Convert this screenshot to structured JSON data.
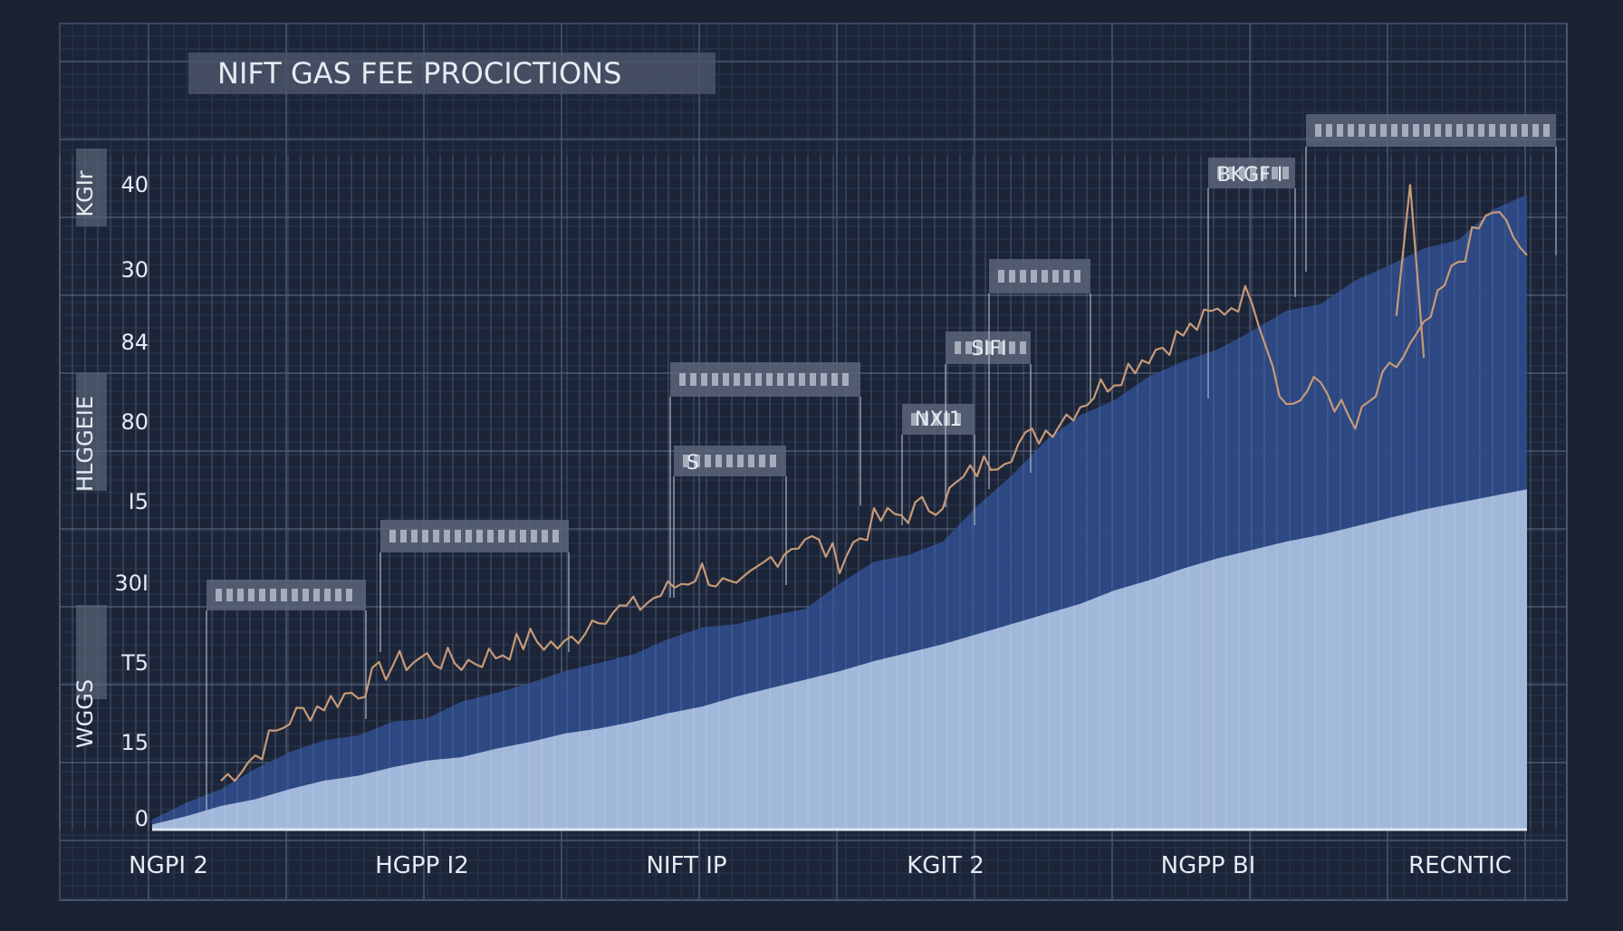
{
  "colors": {
    "background": "#1a2233",
    "panel": "#1c2538",
    "grid_minor": "#2a3650",
    "grid_major": "#4a5670",
    "area_outer": "#2e4a86",
    "area_inner": "#a9bfdf",
    "line": "#c79a78",
    "label_box": "#5a6478",
    "text": "#e6ebf3"
  },
  "chart_data": {
    "type": "area",
    "title": "NIFT  GAS FEE PROCICTIONS",
    "ylabel_segments": [
      "KGIr",
      "HLGGEIE",
      "WGGS"
    ],
    "x_tick_labels": [
      "NGPI 2",
      "HGPP I2",
      "NIFT IP",
      "KGIT 2",
      "NGPP BI",
      "RECNTIC"
    ],
    "y_tick_labels": [
      "0",
      "15",
      "T5",
      "30I",
      "I5",
      "80",
      "84",
      "30",
      "40"
    ],
    "annotations": [
      "BKGF I",
      "SIFI",
      "NXI1",
      "S"
    ],
    "x": [
      0,
      1,
      2,
      3,
      4,
      5,
      6,
      7,
      8,
      9,
      10,
      11,
      12,
      13,
      14,
      15,
      16,
      17,
      18,
      19,
      20,
      21,
      22,
      23,
      24,
      25,
      26,
      27,
      28,
      29,
      30,
      31,
      32,
      33,
      34,
      35,
      36,
      37,
      38,
      39,
      40
    ],
    "series": [
      {
        "values": [
          0.3,
          0.8,
          1.4,
          1.8,
          2.4,
          2.9,
          3.2,
          3.7,
          4.1,
          4.3,
          4.8,
          5.2,
          5.7,
          6.0,
          6.4,
          6.9,
          7.3,
          7.9,
          8.4,
          8.9,
          9.4,
          10.0,
          10.5,
          11.0,
          11.6,
          12.2,
          12.8,
          13.4,
          14.2,
          14.8,
          15.5,
          16.1,
          16.6,
          17.1,
          17.5,
          18.0,
          18.5,
          19.0,
          19.4,
          19.8,
          20.2
        ]
      },
      {
        "values": [
          0.6,
          1.6,
          2.4,
          3.6,
          4.6,
          5.3,
          5.6,
          6.4,
          6.6,
          7.6,
          8.1,
          8.7,
          9.4,
          9.9,
          10.4,
          11.3,
          12.0,
          12.2,
          12.7,
          13.1,
          14.6,
          15.9,
          16.3,
          17.1,
          19.2,
          21.0,
          23.1,
          24.6,
          25.5,
          26.9,
          27.8,
          28.5,
          29.6,
          30.8,
          31.2,
          32.6,
          33.5,
          34.5,
          35.0,
          36.8,
          37.7
        ]
      },
      {
        "values": [
          0.9,
          1.9,
          2.9,
          4.4,
          6.6,
          7.5,
          8.3,
          9.8,
          10.2,
          9.9,
          10.4,
          11.3,
          10.8,
          12.9,
          13.1,
          14.2,
          15.4,
          13.9,
          16.1,
          17.4,
          16.0,
          18.3,
          18.8,
          19.6,
          21.4,
          22.6,
          23.7,
          25.3,
          26.9,
          28.3,
          29.4,
          30.7,
          31.9,
          25.1,
          26.5,
          23.8,
          27.1,
          29.5,
          33.8,
          36.8,
          34.1
        ]
      }
    ]
  }
}
